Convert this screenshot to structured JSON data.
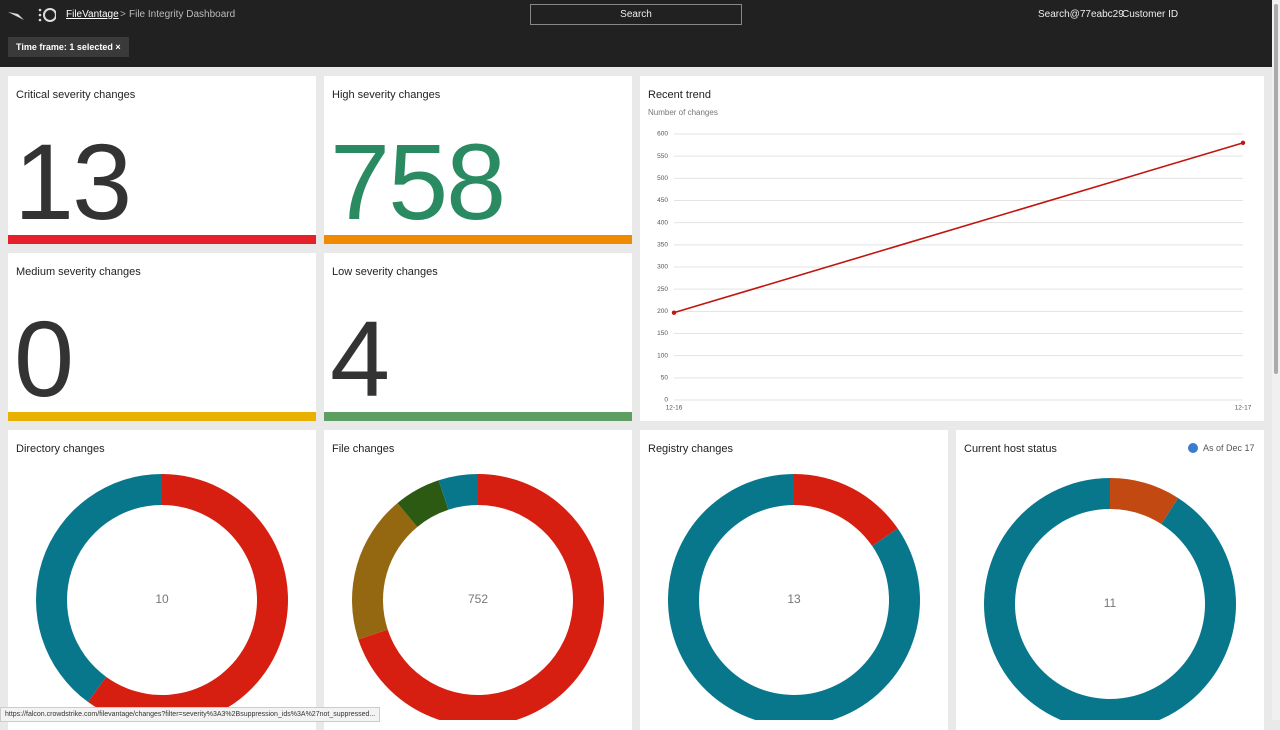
{
  "nav": {
    "app": "FileVantage",
    "page": "File Integrity Dashboard",
    "search": "Search",
    "user": "Search@77eabc29",
    "customer": "Customer ID"
  },
  "filter": "Time frame: 1 selected",
  "tiles": [
    {
      "title": "Critical severity changes",
      "value": 13
    },
    {
      "title": "High severity changes",
      "value": 758
    },
    {
      "title": "Medium severity changes",
      "value": 0
    },
    {
      "title": "Low severity changes",
      "value": 4
    }
  ],
  "chart_data": [
    {
      "type": "line",
      "title": "Recent trend",
      "ylabel": "Number of changes",
      "x": [
        "12-16",
        "12-17"
      ],
      "values": [
        197,
        580
      ],
      "color": "#c0160f",
      "ylim": [
        0,
        600
      ],
      "yticks": [
        0,
        50,
        100,
        150,
        200,
        250,
        300,
        350,
        400,
        450,
        500,
        550,
        600
      ],
      "grid": true
    },
    {
      "type": "donut",
      "title": "Directory changes",
      "center_label": 10,
      "values": [
        6,
        4
      ],
      "colors": [
        "#d61f10",
        "#08778c"
      ]
    },
    {
      "type": "donut",
      "title": "File changes",
      "center_label": 752,
      "values": [
        526,
        143,
        45,
        38
      ],
      "colors": [
        "#d61f10",
        "#946810",
        "#2d5a12",
        "#08778c"
      ]
    },
    {
      "type": "donut",
      "title": "Registry changes",
      "center_label": 13,
      "values": [
        2,
        11
      ],
      "colors": [
        "#d61f10",
        "#08778c"
      ]
    },
    {
      "type": "donut",
      "title": "Current host status",
      "note": "As of Dec 17",
      "center_label": 11,
      "values": [
        1,
        10
      ],
      "colors": [
        "#c24a12",
        "#08778c"
      ]
    }
  ],
  "status_url": "https://falcon.crowdstrike.com/filevantage/changes?filter=severity%3A3%2Bsuppression_ids%3A%27not_suppressed..."
}
